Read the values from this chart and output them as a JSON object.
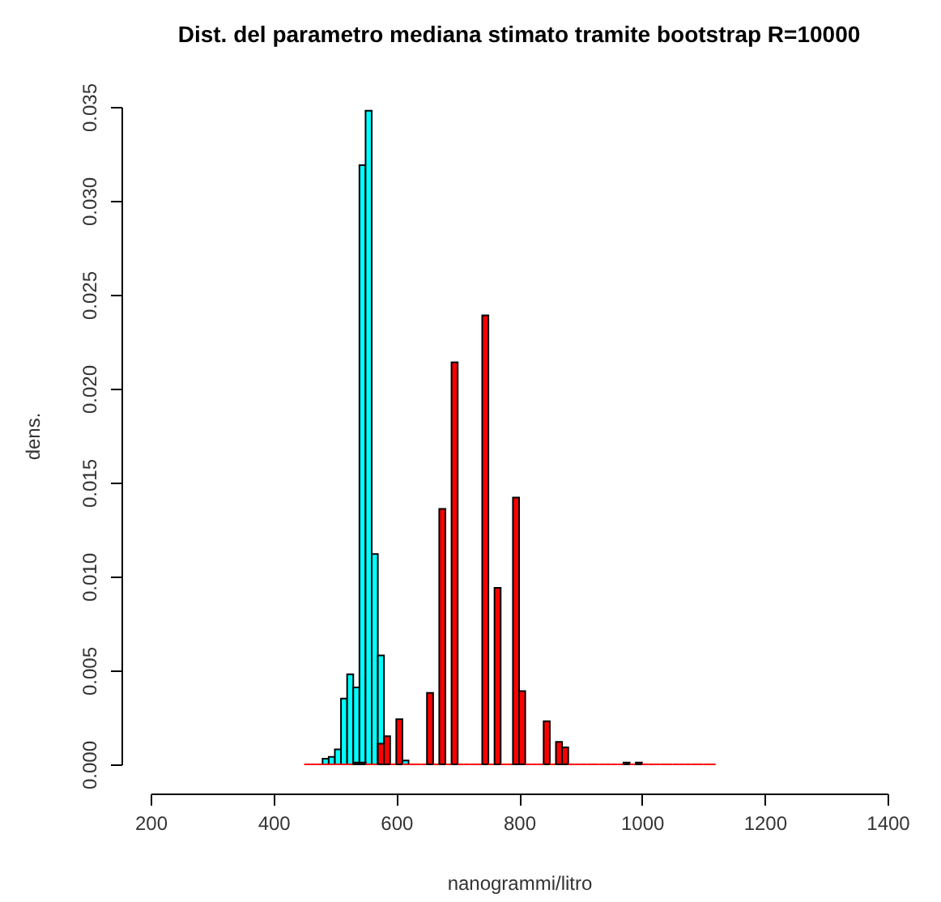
{
  "chart_data": {
    "type": "histogram",
    "title": "Dist. del parametro mediana stimato tramite bootstrap R=10000",
    "xlabel": "nanogrammi/litro",
    "ylabel": "dens.",
    "bins": [
      450,
      460,
      470,
      480,
      490,
      500,
      510,
      520,
      530,
      540,
      550,
      560,
      570,
      580,
      590,
      600,
      610,
      620,
      630,
      640,
      650,
      660,
      670,
      680,
      690,
      700,
      710,
      720,
      730,
      740,
      750,
      760,
      770,
      780,
      790,
      800,
      810,
      820,
      830,
      840,
      850,
      860,
      870,
      880,
      890,
      900,
      910,
      920,
      930,
      940,
      950,
      960,
      970,
      980,
      990,
      1000,
      1010,
      1020,
      1030,
      1040,
      1050,
      1060,
      1070,
      1080,
      1090,
      1100,
      1110,
      1120
    ],
    "series": [
      {
        "color": "#00ffff",
        "values": [
          null,
          null,
          null,
          0.0003,
          0.0004,
          0.0008,
          0.0035,
          0.0048,
          0.0041,
          0.0319,
          0.0348,
          0.0112,
          0.0058,
          0,
          0,
          0,
          0.0002,
          null,
          null,
          null,
          null,
          null,
          null,
          null,
          null,
          null,
          null,
          null,
          null,
          null,
          null,
          null,
          null,
          null,
          null,
          null,
          null,
          null,
          null,
          null,
          null,
          null,
          null,
          null,
          null,
          null,
          null,
          null,
          null,
          null,
          null,
          null,
          null,
          null,
          null,
          null,
          null,
          null,
          null,
          null,
          null,
          null,
          null,
          null,
          null,
          null,
          null
        ]
      },
      {
        "color": "#ff0000",
        "values": [
          0,
          0,
          0,
          0,
          0,
          0,
          0,
          0,
          0.0001,
          0.0001,
          0,
          0,
          0.0011,
          0.0015,
          0,
          0.0024,
          0,
          0,
          0,
          0,
          0.0038,
          0,
          0.0136,
          0,
          0.0214,
          0,
          0,
          0,
          0,
          0.0239,
          0,
          0.0094,
          0,
          0,
          0.0142,
          0.0039,
          0,
          0,
          0,
          0.0023,
          0,
          0.0012,
          0.0009,
          0,
          0,
          0,
          0,
          0,
          0,
          0,
          0,
          0,
          0.0001,
          0,
          0.0001,
          0,
          0,
          0,
          0,
          0,
          0,
          0,
          0,
          0,
          0,
          0,
          0
        ]
      }
    ],
    "xlim": [
      200,
      1400
    ],
    "xticks": [
      200,
      400,
      600,
      800,
      1000,
      1200,
      1400
    ],
    "ylim": [
      0,
      0.035
    ],
    "yticks": [
      {
        "value": 0,
        "label": "0.000"
      },
      0.005,
      {
        "value": 0.01,
        "label": "0.010"
      },
      0.015,
      {
        "value": 0.02,
        "label": "0.020"
      },
      0.025,
      {
        "value": 0.03,
        "label": "0.030"
      },
      0.035
    ],
    "grid": false
  }
}
